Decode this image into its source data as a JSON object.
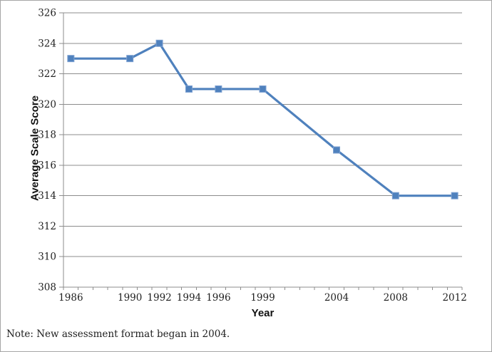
{
  "window": {
    "background_color": "#ffffff",
    "border_color": "#a6a6a6"
  },
  "chart_data": {
    "type": "line",
    "title": "",
    "xlabel": "Year",
    "ylabel": "Average Scale Score",
    "x": [
      1986,
      1990,
      1992,
      1994,
      1996,
      1999,
      2004,
      2008,
      2012
    ],
    "values": [
      323,
      323,
      324,
      321,
      321,
      321,
      317,
      314,
      314
    ],
    "x_tick_labels": [
      "1986",
      "1990",
      "1992",
      "1994",
      "1996",
      "1999",
      "2004",
      "2008",
      "2012"
    ],
    "y_ticks": [
      308,
      310,
      312,
      314,
      316,
      318,
      320,
      322,
      324,
      326
    ],
    "ylim": [
      308,
      326
    ],
    "x_category_range": [
      1986,
      2012
    ],
    "grid": "horizontal-major",
    "legend": "none",
    "marker": "square",
    "line_color": "#4F81BD",
    "marker_edge_color": "#7ca0d1",
    "gridline_color": "#8c8c8c",
    "axis_color": "#8c8c8c",
    "tick_text_color": "#1f1f1f"
  },
  "note": {
    "text": "Note: New assessment format began in 2004."
  }
}
